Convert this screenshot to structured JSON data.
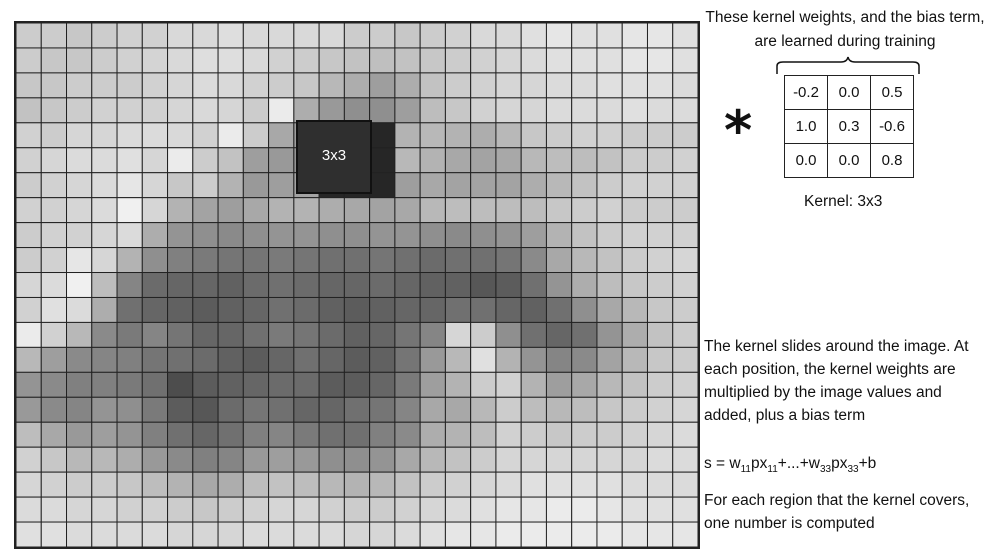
{
  "image_grid": {
    "cols": 27,
    "rows": 21,
    "intensity_rows": [
      [
        0.8,
        0.8,
        0.78,
        0.8,
        0.82,
        0.82,
        0.85,
        0.85,
        0.87,
        0.85,
        0.85,
        0.85,
        0.85,
        0.8,
        0.8,
        0.78,
        0.8,
        0.82,
        0.85,
        0.85,
        0.88,
        0.9,
        0.88,
        0.88,
        0.9,
        0.9,
        0.88
      ],
      [
        0.8,
        0.78,
        0.78,
        0.8,
        0.82,
        0.83,
        0.85,
        0.87,
        0.87,
        0.85,
        0.82,
        0.8,
        0.78,
        0.76,
        0.75,
        0.76,
        0.78,
        0.8,
        0.82,
        0.84,
        0.86,
        0.88,
        0.88,
        0.88,
        0.9,
        0.9,
        0.88
      ],
      [
        0.78,
        0.78,
        0.8,
        0.8,
        0.8,
        0.82,
        0.84,
        0.86,
        0.85,
        0.82,
        0.8,
        0.78,
        0.72,
        0.68,
        0.62,
        0.68,
        0.76,
        0.8,
        0.82,
        0.84,
        0.84,
        0.86,
        0.86,
        0.88,
        0.88,
        0.88,
        0.86
      ],
      [
        0.76,
        0.78,
        0.8,
        0.82,
        0.82,
        0.82,
        0.84,
        0.85,
        0.84,
        0.8,
        0.92,
        0.68,
        0.6,
        0.56,
        0.56,
        0.62,
        0.74,
        0.78,
        0.82,
        0.84,
        0.84,
        0.86,
        0.86,
        0.86,
        0.88,
        0.86,
        0.86
      ],
      [
        0.82,
        0.8,
        0.84,
        0.84,
        0.86,
        0.86,
        0.85,
        0.82,
        0.92,
        0.8,
        0.66,
        0.62,
        0.15,
        0.15,
        0.15,
        0.7,
        0.72,
        0.7,
        0.68,
        0.72,
        0.78,
        0.8,
        0.82,
        0.82,
        0.8,
        0.8,
        0.8
      ],
      [
        0.82,
        0.84,
        0.86,
        0.86,
        0.88,
        0.84,
        0.92,
        0.8,
        0.76,
        0.62,
        0.6,
        0.58,
        0.15,
        0.15,
        0.15,
        0.72,
        0.7,
        0.66,
        0.64,
        0.66,
        0.72,
        0.74,
        0.74,
        0.76,
        0.8,
        0.8,
        0.82
      ],
      [
        0.8,
        0.82,
        0.84,
        0.86,
        0.9,
        0.84,
        0.78,
        0.8,
        0.7,
        0.6,
        0.62,
        0.64,
        0.15,
        0.15,
        0.15,
        0.62,
        0.66,
        0.64,
        0.64,
        0.64,
        0.68,
        0.72,
        0.76,
        0.8,
        0.82,
        0.82,
        0.82
      ],
      [
        0.82,
        0.82,
        0.84,
        0.86,
        0.94,
        0.84,
        0.7,
        0.64,
        0.62,
        0.66,
        0.7,
        0.7,
        0.68,
        0.66,
        0.64,
        0.66,
        0.72,
        0.74,
        0.74,
        0.74,
        0.74,
        0.78,
        0.8,
        0.82,
        0.8,
        0.8,
        0.8
      ],
      [
        0.8,
        0.82,
        0.82,
        0.84,
        0.86,
        0.68,
        0.58,
        0.56,
        0.54,
        0.56,
        0.58,
        0.58,
        0.56,
        0.56,
        0.58,
        0.58,
        0.56,
        0.54,
        0.56,
        0.58,
        0.62,
        0.7,
        0.76,
        0.8,
        0.82,
        0.82,
        0.82
      ],
      [
        0.8,
        0.82,
        0.9,
        0.84,
        0.7,
        0.56,
        0.5,
        0.48,
        0.46,
        0.46,
        0.48,
        0.46,
        0.44,
        0.44,
        0.46,
        0.44,
        0.42,
        0.44,
        0.44,
        0.46,
        0.54,
        0.66,
        0.72,
        0.76,
        0.8,
        0.82,
        0.84
      ],
      [
        0.84,
        0.86,
        0.94,
        0.74,
        0.52,
        0.42,
        0.4,
        0.4,
        0.38,
        0.42,
        0.44,
        0.42,
        0.4,
        0.4,
        0.42,
        0.4,
        0.38,
        0.38,
        0.34,
        0.36,
        0.44,
        0.58,
        0.68,
        0.74,
        0.78,
        0.8,
        0.82
      ],
      [
        0.82,
        0.88,
        0.86,
        0.68,
        0.44,
        0.4,
        0.38,
        0.36,
        0.38,
        0.4,
        0.44,
        0.42,
        0.38,
        0.36,
        0.38,
        0.4,
        0.4,
        0.44,
        0.44,
        0.4,
        0.38,
        0.44,
        0.56,
        0.66,
        0.72,
        0.78,
        0.8
      ],
      [
        0.92,
        0.82,
        0.72,
        0.54,
        0.48,
        0.52,
        0.46,
        0.4,
        0.4,
        0.44,
        0.48,
        0.46,
        0.42,
        0.38,
        0.4,
        0.46,
        0.52,
        0.84,
        0.8,
        0.56,
        0.44,
        0.4,
        0.44,
        0.58,
        0.68,
        0.76,
        0.8
      ],
      [
        0.72,
        0.62,
        0.54,
        0.52,
        0.5,
        0.46,
        0.44,
        0.42,
        0.38,
        0.36,
        0.4,
        0.44,
        0.4,
        0.36,
        0.38,
        0.46,
        0.6,
        0.72,
        0.88,
        0.7,
        0.58,
        0.52,
        0.54,
        0.64,
        0.72,
        0.78,
        0.8
      ],
      [
        0.58,
        0.54,
        0.5,
        0.5,
        0.48,
        0.44,
        0.3,
        0.36,
        0.38,
        0.4,
        0.42,
        0.42,
        0.36,
        0.36,
        0.4,
        0.48,
        0.62,
        0.7,
        0.8,
        0.82,
        0.7,
        0.62,
        0.66,
        0.72,
        0.76,
        0.8,
        0.82
      ],
      [
        0.6,
        0.54,
        0.52,
        0.58,
        0.56,
        0.48,
        0.36,
        0.34,
        0.42,
        0.46,
        0.44,
        0.4,
        0.4,
        0.44,
        0.46,
        0.52,
        0.66,
        0.66,
        0.72,
        0.8,
        0.74,
        0.72,
        0.74,
        0.78,
        0.8,
        0.82,
        0.84
      ],
      [
        0.74,
        0.66,
        0.6,
        0.62,
        0.58,
        0.5,
        0.44,
        0.4,
        0.44,
        0.5,
        0.52,
        0.48,
        0.44,
        0.44,
        0.5,
        0.54,
        0.68,
        0.7,
        0.74,
        0.82,
        0.8,
        0.78,
        0.8,
        0.8,
        0.82,
        0.84,
        0.86
      ],
      [
        0.82,
        0.78,
        0.72,
        0.72,
        0.68,
        0.6,
        0.54,
        0.5,
        0.52,
        0.6,
        0.62,
        0.6,
        0.56,
        0.56,
        0.58,
        0.66,
        0.72,
        0.76,
        0.8,
        0.84,
        0.84,
        0.84,
        0.84,
        0.84,
        0.84,
        0.86,
        0.86
      ],
      [
        0.84,
        0.82,
        0.8,
        0.8,
        0.78,
        0.74,
        0.7,
        0.66,
        0.68,
        0.74,
        0.76,
        0.74,
        0.72,
        0.7,
        0.72,
        0.76,
        0.8,
        0.82,
        0.84,
        0.86,
        0.88,
        0.88,
        0.88,
        0.88,
        0.86,
        0.86,
        0.86
      ],
      [
        0.86,
        0.86,
        0.84,
        0.84,
        0.82,
        0.82,
        0.8,
        0.78,
        0.8,
        0.82,
        0.84,
        0.84,
        0.82,
        0.8,
        0.8,
        0.82,
        0.84,
        0.86,
        0.88,
        0.9,
        0.9,
        0.92,
        0.92,
        0.9,
        0.88,
        0.88,
        0.88
      ],
      [
        0.88,
        0.88,
        0.86,
        0.86,
        0.86,
        0.86,
        0.84,
        0.84,
        0.84,
        0.86,
        0.86,
        0.86,
        0.86,
        0.84,
        0.84,
        0.86,
        0.88,
        0.9,
        0.9,
        0.92,
        0.92,
        0.92,
        0.92,
        0.92,
        0.9,
        0.9,
        0.9
      ]
    ],
    "line_color": "#222222"
  },
  "kernel_window": {
    "label": "3x3"
  },
  "learned_note": "These kernel weights, and the bias term, are learned during training",
  "convolution_symbol": "*",
  "kernel": {
    "weights": [
      [
        "-0.2",
        "0.0",
        "0.5"
      ],
      [
        "1.0",
        "0.3",
        "-0.6"
      ],
      [
        "0.0",
        "0.0",
        "0.8"
      ]
    ],
    "caption": "Kernel: 3x3"
  },
  "explanation": {
    "slides": "The kernel slides around the image. At each position, the kernel weights are multiplied by the image values and added, plus a bias term",
    "formula": {
      "s": "s = w",
      "sub1": "11",
      "px1": "px",
      "sub2": "11",
      "mid": "+...+w",
      "sub3": "33",
      "px2": "px",
      "sub4": "33",
      "tail": "+b"
    },
    "each_region": "For each region that the kernel covers, one number is computed"
  }
}
